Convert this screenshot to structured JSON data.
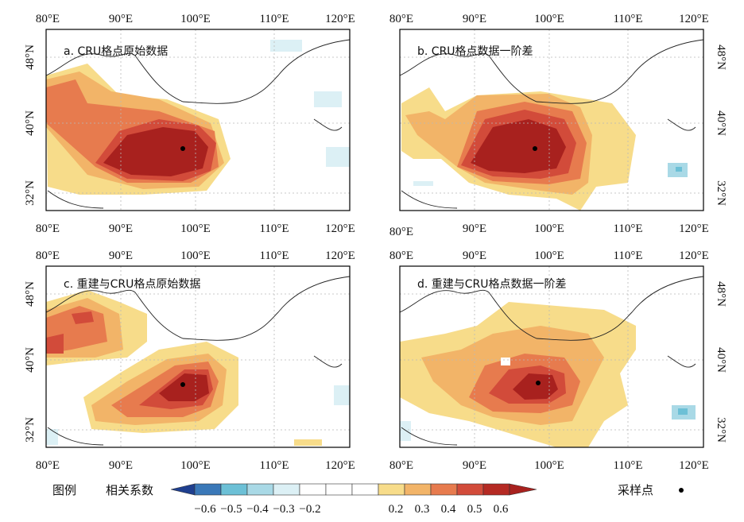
{
  "colors": {
    "neg06": "#1f3f8f",
    "neg05": "#3a78b8",
    "neg04": "#6cc0d6",
    "neg03": "#a9d9e6",
    "neg02": "#dcf0f5",
    "zero": "#ffffff",
    "p02": "#f7dc8a",
    "p03": "#f2b468",
    "p04": "#e77b4e",
    "p05": "#d24b3a",
    "p06": "#a8211e"
  },
  "panels": [
    {
      "title": "a. CRU格点原始数据",
      "top_lon": [
        "80°E",
        "90°E",
        "100°E",
        "110°E",
        "120°E"
      ],
      "bottom_lon": [
        "80°E",
        "90°E",
        "100°E",
        "110°E",
        "120°E"
      ],
      "lat": [
        "48°N",
        "40°N",
        "32°N"
      ],
      "lat_side": "left"
    },
    {
      "title": "b. CRU格点数据一阶差",
      "top_lon": [
        "80°E",
        "90°E",
        "100°E",
        "110°E",
        "120°E"
      ],
      "bottom_lon": [
        "80°E",
        "90°E",
        "100°E",
        "110°E",
        "120°E"
      ],
      "lat": [
        "48°N",
        "40°N",
        "32°N"
      ],
      "lat_side": "right"
    },
    {
      "title": "c. 重建与CRU格点原始数据",
      "top_lon": [
        "80°E",
        "90°E",
        "100°E",
        "110°E",
        "120°E"
      ],
      "bottom_lon": [
        "80°E",
        "90°E",
        "100°E",
        "110°E",
        "120°E"
      ],
      "lat": [
        "48°N",
        "40°N",
        "32°N"
      ],
      "lat_side": "left"
    },
    {
      "title": "d. 重建与CRU格点数据一阶差",
      "top_lon": [
        "80°E",
        "90°E",
        "100°E",
        "110°E",
        "120°E"
      ],
      "bottom_lon": [
        "80°E",
        "90°E",
        "100°E",
        "110°E",
        "120°E"
      ],
      "lat": [
        "48°N",
        "40°N",
        "32°N"
      ],
      "lat_side": "right"
    }
  ],
  "legend": {
    "title": "图例",
    "colorbar_label": "相关系数",
    "ticks": [
      "−0.6",
      "−0.5",
      "−0.4",
      "−0.3",
      "−0.2",
      "0.2",
      "0.3",
      "0.4",
      "0.5",
      "0.6"
    ],
    "sample_label": "采样点"
  }
}
